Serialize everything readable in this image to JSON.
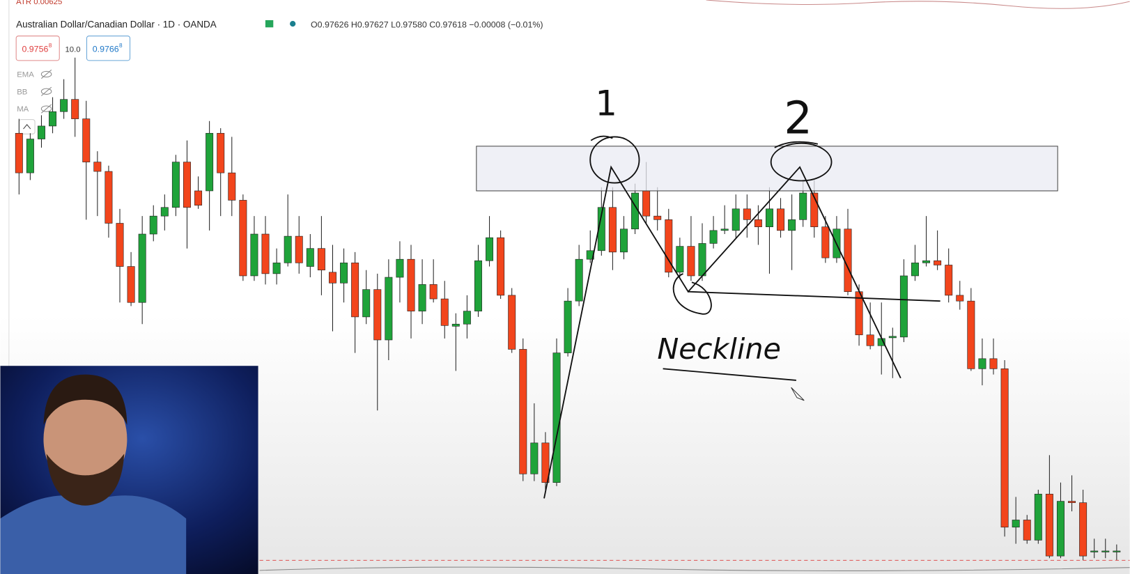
{
  "header": {
    "atr": "ATR 0.00625",
    "symbol": "Australian Dollar/Canadian Dollar · 1D · OANDA",
    "ohlc": "O0.97626 H0.97627 L0.97580 C0.97618 −0.00008 (−0.01%)",
    "sell_price": "0.9756",
    "sell_sup": "8",
    "spread": "10.0",
    "buy_price": "0.9766",
    "buy_sup": "8"
  },
  "indicators": [
    "EMA",
    "BB",
    "MA"
  ],
  "annotations": {
    "peak_1": "1",
    "peak_2": "2",
    "neckline": "Neckline"
  }
}
